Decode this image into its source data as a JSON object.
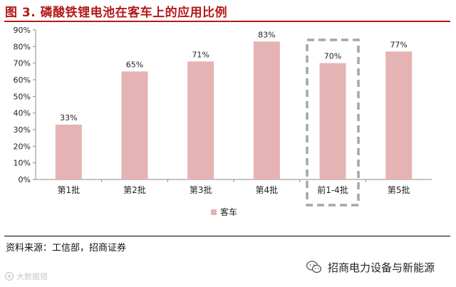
{
  "header": {
    "title": "图 3. 磷酸铁锂电池在客车上的应用比例"
  },
  "chart_data": {
    "type": "bar",
    "categories": [
      "第1批",
      "第2批",
      "第3批",
      "第4批",
      "前1-4批",
      "第5批"
    ],
    "series": [
      {
        "name": "客车",
        "values": [
          33,
          65,
          71,
          83,
          70,
          77
        ],
        "color": "#e6b3b4"
      }
    ],
    "data_labels": [
      "33%",
      "65%",
      "71%",
      "83%",
      "70%",
      "77%"
    ],
    "y_ticks": [
      "0%",
      "10%",
      "20%",
      "30%",
      "40%",
      "50%",
      "60%",
      "70%",
      "80%",
      "90%"
    ],
    "ylim": [
      0,
      90
    ],
    "ylabel": "",
    "xlabel": "",
    "grid": false,
    "legend": "bottom-center",
    "highlighted_category": "前1-4批",
    "highlight_color": "#a6a6a6"
  },
  "footer": {
    "source": "资料来源：工信部，招商证券",
    "brand_icon": "wechat-icon",
    "brand_name": "招商电力设备与新能源",
    "watermark": "大数据猎"
  }
}
